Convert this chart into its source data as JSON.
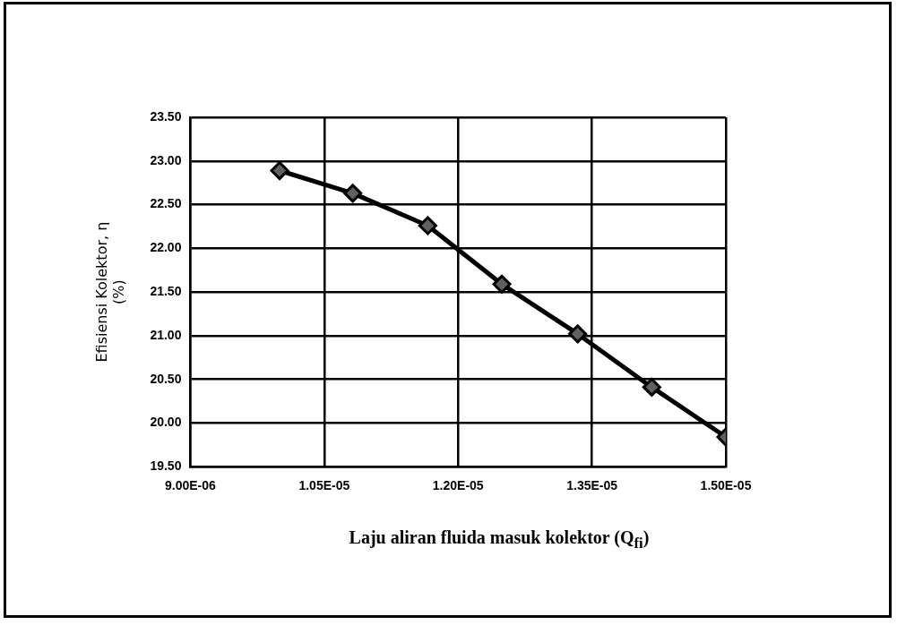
{
  "chart_data": {
    "type": "line",
    "xlabel": "Laju aliran fluida masuk kolektor (Q$_{fi}$)",
    "ylabel": "Efisiensi Kolektor, η\n(%)",
    "x": [
      1e-05,
      1.082e-05,
      1.166e-05,
      1.249e-05,
      1.334e-05,
      1.417e-05,
      1.5e-05
    ],
    "series": [
      {
        "color": "#000000",
        "values": [
          22.89,
          22.63,
          22.26,
          21.59,
          21.02,
          20.41,
          19.84
        ]
      }
    ],
    "xlim": [
      9e-06,
      1.5e-05
    ],
    "xticks": [
      {
        "value": 9e-06,
        "label": "9.00E-06"
      },
      {
        "value": 1.05e-05,
        "label": "1.05E-05"
      },
      {
        "value": 1.2e-05,
        "label": "1.20E-05"
      },
      {
        "value": 1.35e-05,
        "label": "1.35E-05"
      },
      {
        "value": 1.5e-05,
        "label": "1.50E-05"
      }
    ],
    "ylim": [
      19.5,
      23.5
    ],
    "yticks": [
      {
        "value": 19.5,
        "label": "19.50"
      },
      {
        "value": 20,
        "label": "20.00"
      },
      {
        "value": 20.5,
        "label": "20.50"
      },
      {
        "value": 21,
        "label": "21.00"
      },
      {
        "value": 21.5,
        "label": "21.50"
      },
      {
        "value": 22,
        "label": "22.00"
      },
      {
        "value": 22.5,
        "label": "22.50"
      },
      {
        "value": 23,
        "label": "23.00"
      },
      {
        "value": 23.5,
        "label": "23.50"
      }
    ],
    "grid": true,
    "legend": false,
    "marker": "diamond",
    "line_style": "solid"
  }
}
